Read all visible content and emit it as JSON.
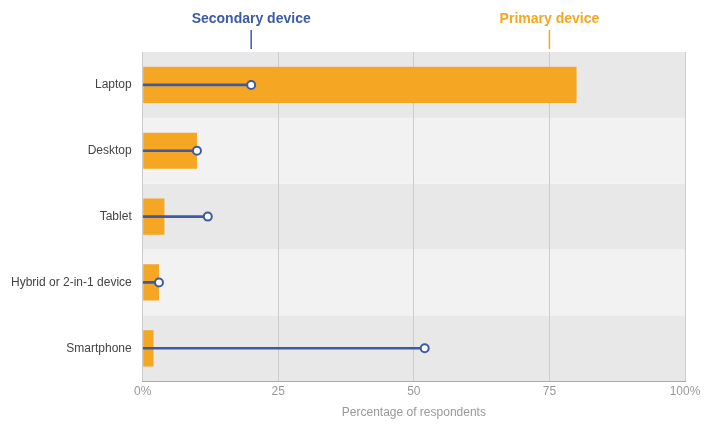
{
  "chart_data": {
    "type": "bar",
    "orientation": "horizontal",
    "x_label": "Percentage of respondents",
    "categories": [
      "Smartphone",
      "Hybrid or 2-in-1 device",
      "Tablet",
      "Desktop",
      "Laptop"
    ],
    "series": [
      {
        "name": "Primary device",
        "type": "bar",
        "color": "#F5A623",
        "values": [
          2,
          3,
          4,
          10,
          80
        ]
      },
      {
        "name": "Secondary device",
        "type": "lollipop",
        "color": "#3B5BA5",
        "values": [
          52,
          3,
          12,
          10,
          20
        ]
      }
    ],
    "xlim": [
      0,
      100
    ],
    "xticks": [
      {
        "value": 0,
        "label": "0%"
      },
      25,
      50,
      75,
      {
        "value": 100,
        "label": "100%"
      }
    ],
    "grid": true,
    "annotations": [
      {
        "text": "Secondary device",
        "x": 20,
        "color": "#3B5BA5"
      },
      {
        "text": "Primary device",
        "x": 75,
        "color": "#F5A623"
      }
    ]
  }
}
